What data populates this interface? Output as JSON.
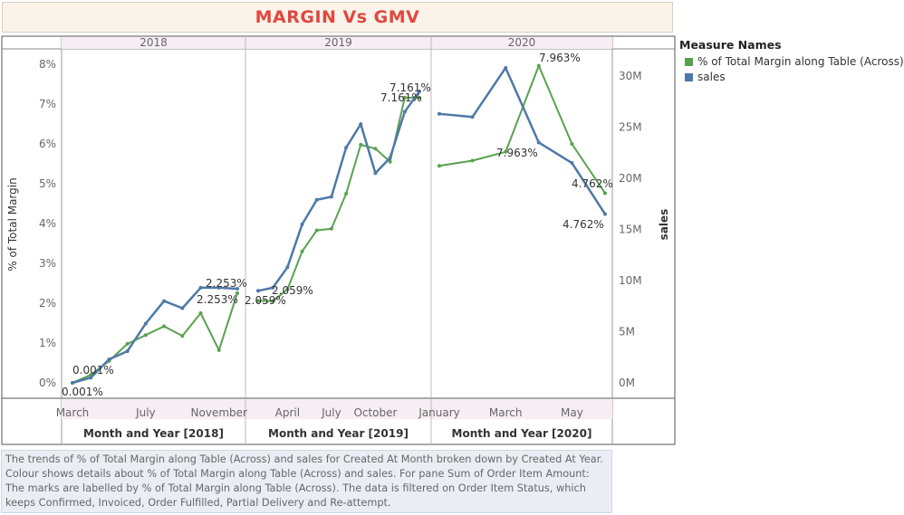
{
  "title": "MARGIN Vs GMV",
  "legend": {
    "title": "Measure Names",
    "items": [
      {
        "label": "% of Total Margin along Table (Across)",
        "color": "#59a14f"
      },
      {
        "label": "sales",
        "color": "#4e79a7"
      }
    ]
  },
  "caption": "The trends of % of Total Margin along Table (Across) and sales for Created At Month broken down by Created At Year.  Colour shows details about % of Total Margin along Table (Across) and sales.  For pane Sum of Order Item Amount:  The marks are labelled by % of Total Margin along Table (Across). The data is filtered on Order Item Status, which keeps Confirmed, Invoiced, Order Fulfilled, Partial Delivery and Re-attempt.",
  "chart_data": {
    "type": "line",
    "panes": [
      {
        "year": "2018",
        "xlabel": "Month and Year [2018]",
        "ticks": [
          "March",
          "July",
          "November"
        ]
      },
      {
        "year": "2019",
        "xlabel": "Month and Year [2019]",
        "ticks": [
          "April",
          "July",
          "October"
        ]
      },
      {
        "year": "2020",
        "xlabel": "Month and Year [2020]",
        "ticks": [
          "January",
          "March",
          "May"
        ]
      }
    ],
    "y_left": {
      "label": "% of Total Margin",
      "range": [
        0,
        8.5
      ],
      "ticks": [
        "0%",
        "1%",
        "2%",
        "3%",
        "4%",
        "5%",
        "6%",
        "7%",
        "8%"
      ]
    },
    "y_right": {
      "label": "sales",
      "range": [
        0,
        32000000
      ],
      "ticks": [
        "0M",
        "5M",
        "10M",
        "15M",
        "20M",
        "25M",
        "30M"
      ]
    },
    "series": [
      {
        "name": "% of Total Margin along Table (Across)",
        "axis": "left",
        "color": "#59a14f",
        "points": [
          {
            "pane": 0,
            "x": 0,
            "y": 0.001
          },
          {
            "pane": 0,
            "x": 1,
            "y": 0.2
          },
          {
            "pane": 0,
            "x": 2,
            "y": 0.55
          },
          {
            "pane": 0,
            "x": 3,
            "y": 0.98
          },
          {
            "pane": 0,
            "x": 4,
            "y": 1.2
          },
          {
            "pane": 0,
            "x": 5,
            "y": 1.42
          },
          {
            "pane": 0,
            "x": 6,
            "y": 1.18
          },
          {
            "pane": 0,
            "x": 7,
            "y": 1.75
          },
          {
            "pane": 0,
            "x": 8,
            "y": 0.82
          },
          {
            "pane": 0,
            "x": 9,
            "y": 2.253
          },
          {
            "pane": 1,
            "x": 0,
            "y": 2.059
          },
          {
            "pane": 1,
            "x": 1,
            "y": 2.05
          },
          {
            "pane": 1,
            "x": 2,
            "y": 2.35
          },
          {
            "pane": 1,
            "x": 3,
            "y": 3.3
          },
          {
            "pane": 1,
            "x": 4,
            "y": 3.83
          },
          {
            "pane": 1,
            "x": 5,
            "y": 3.87
          },
          {
            "pane": 1,
            "x": 6,
            "y": 4.75
          },
          {
            "pane": 1,
            "x": 7,
            "y": 5.98
          },
          {
            "pane": 1,
            "x": 8,
            "y": 5.88
          },
          {
            "pane": 1,
            "x": 9,
            "y": 5.55
          },
          {
            "pane": 1,
            "x": 10,
            "y": 7.161
          },
          {
            "pane": 1,
            "x": 11,
            "y": 7.161
          },
          {
            "pane": 2,
            "x": 0,
            "y": 5.45
          },
          {
            "pane": 2,
            "x": 1,
            "y": 5.58
          },
          {
            "pane": 2,
            "x": 2,
            "y": 5.8
          },
          {
            "pane": 2,
            "x": 3,
            "y": 7.963
          },
          {
            "pane": 2,
            "x": 4,
            "y": 6.0
          },
          {
            "pane": 2,
            "x": 5,
            "y": 4.762
          }
        ]
      },
      {
        "name": "sales",
        "axis": "right",
        "color": "#4e79a7",
        "points": [
          {
            "pane": 0,
            "x": 0,
            "y": 0
          },
          {
            "pane": 0,
            "x": 1,
            "y": 500000
          },
          {
            "pane": 0,
            "x": 2,
            "y": 2300000
          },
          {
            "pane": 0,
            "x": 3,
            "y": 3100000
          },
          {
            "pane": 0,
            "x": 4,
            "y": 5800000
          },
          {
            "pane": 0,
            "x": 5,
            "y": 8000000
          },
          {
            "pane": 0,
            "x": 6,
            "y": 7300000
          },
          {
            "pane": 0,
            "x": 7,
            "y": 9300000
          },
          {
            "pane": 0,
            "x": 8,
            "y": 9300000
          },
          {
            "pane": 0,
            "x": 9,
            "y": 9200000
          },
          {
            "pane": 1,
            "x": 0,
            "y": 9000000
          },
          {
            "pane": 1,
            "x": 1,
            "y": 9300000
          },
          {
            "pane": 1,
            "x": 2,
            "y": 11300000
          },
          {
            "pane": 1,
            "x": 3,
            "y": 15500000
          },
          {
            "pane": 1,
            "x": 4,
            "y": 17900000
          },
          {
            "pane": 1,
            "x": 5,
            "y": 18200000
          },
          {
            "pane": 1,
            "x": 6,
            "y": 23000000
          },
          {
            "pane": 1,
            "x": 7,
            "y": 25300000
          },
          {
            "pane": 1,
            "x": 8,
            "y": 20500000
          },
          {
            "pane": 1,
            "x": 9,
            "y": 22000000
          },
          {
            "pane": 1,
            "x": 10,
            "y": 26500000
          },
          {
            "pane": 1,
            "x": 11,
            "y": 28500000
          },
          {
            "pane": 2,
            "x": 0,
            "y": 26300000
          },
          {
            "pane": 2,
            "x": 1,
            "y": 26000000
          },
          {
            "pane": 2,
            "x": 2,
            "y": 30800000
          },
          {
            "pane": 2,
            "x": 3,
            "y": 23500000
          },
          {
            "pane": 2,
            "x": 4,
            "y": 21500000
          },
          {
            "pane": 2,
            "x": 5,
            "y": 16500000
          }
        ]
      }
    ],
    "data_labels": [
      {
        "text": "0.001%"
      },
      {
        "text": "0.001%"
      },
      {
        "text": "2.253%"
      },
      {
        "text": "2.253%"
      },
      {
        "text": "2.059%"
      },
      {
        "text": "2.059%"
      },
      {
        "text": "7.161%"
      },
      {
        "text": "7.161%"
      },
      {
        "text": "7.963%"
      },
      {
        "text": "7.963%"
      },
      {
        "text": "4.762%"
      },
      {
        "text": "4.762%"
      }
    ]
  }
}
